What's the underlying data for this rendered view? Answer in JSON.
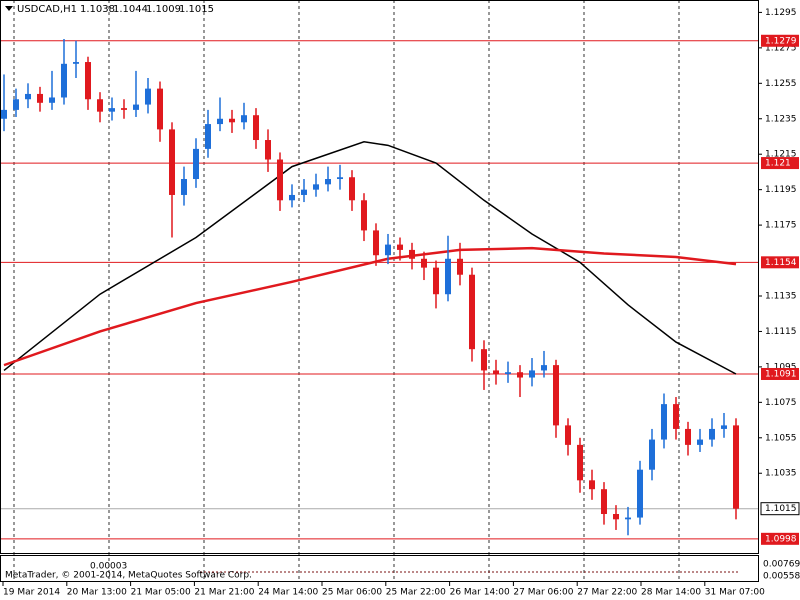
{
  "chart_data": {
    "type": "candlestick",
    "symbol": "USDCAD,H1",
    "quotes": [
      1.1038,
      1.1044,
      1.1009,
      1.1015
    ],
    "footer": "MetaTrader, © 2001-2014, MetaQuotes Software Corp.",
    "indicator_ticks": [
      0.00769,
      0.00558
    ],
    "indicator_label": "0.00003",
    "ylim": [
      1.099,
      1.1302
    ],
    "yticks": [
      1.1295,
      1.1275,
      1.1255,
      1.1235,
      1.1215,
      1.1195,
      1.1175,
      1.1135,
      1.1115,
      1.1095,
      1.1075,
      1.1055,
      1.1035
    ],
    "levels": [
      1.1279,
      1.121,
      1.1154,
      1.1091,
      1.0998
    ],
    "level_color": "#e0191e",
    "bid": 1.1015,
    "categories": [
      "19 Mar 2014",
      "20 Mar 13:00",
      "21 Mar 05:00",
      "21 Mar 21:00",
      "24 Mar 14:00",
      "25 Mar 06:00",
      "25 Mar 22:00",
      "26 Mar 14:00",
      "27 Mar 06:00",
      "27 Mar 22:00",
      "28 Mar 14:00",
      "31 Mar 07:00"
    ],
    "up_color": "#1e6fd9",
    "down_color": "#e0191e",
    "candles": [
      [
        1.1235,
        1.126,
        1.1228,
        1.124
      ],
      [
        1.124,
        1.1252,
        1.1236,
        1.1246
      ],
      [
        1.1246,
        1.1255,
        1.1241,
        1.1249
      ],
      [
        1.1249,
        1.1253,
        1.1239,
        1.1244
      ],
      [
        1.1244,
        1.1262,
        1.124,
        1.1247
      ],
      [
        1.1247,
        1.128,
        1.1243,
        1.1266
      ],
      [
        1.1266,
        1.1279,
        1.1258,
        1.1267
      ],
      [
        1.1267,
        1.127,
        1.124,
        1.1246
      ],
      [
        1.1246,
        1.125,
        1.1233,
        1.1239
      ],
      [
        1.1239,
        1.1247,
        1.1234,
        1.1241
      ],
      [
        1.1241,
        1.1246,
        1.1235,
        1.124
      ],
      [
        1.124,
        1.1262,
        1.1236,
        1.1243
      ],
      [
        1.1243,
        1.1258,
        1.1238,
        1.1252
      ],
      [
        1.1252,
        1.1256,
        1.1222,
        1.1229
      ],
      [
        1.1229,
        1.1233,
        1.1168,
        1.1192
      ],
      [
        1.1192,
        1.1208,
        1.1186,
        1.1201
      ],
      [
        1.1201,
        1.1224,
        1.1196,
        1.1218
      ],
      [
        1.1218,
        1.124,
        1.1213,
        1.1232
      ],
      [
        1.1232,
        1.1247,
        1.1228,
        1.1235
      ],
      [
        1.1235,
        1.124,
        1.1227,
        1.1233
      ],
      [
        1.1233,
        1.1244,
        1.1229,
        1.1237
      ],
      [
        1.1237,
        1.1241,
        1.1218,
        1.1223
      ],
      [
        1.1223,
        1.1229,
        1.1205,
        1.1212
      ],
      [
        1.1212,
        1.1216,
        1.1183,
        1.1189
      ],
      [
        1.1189,
        1.1198,
        1.1185,
        1.1192
      ],
      [
        1.1192,
        1.1201,
        1.1188,
        1.1195
      ],
      [
        1.1195,
        1.1204,
        1.1191,
        1.1198
      ],
      [
        1.1198,
        1.1208,
        1.1194,
        1.1201
      ],
      [
        1.1201,
        1.1209,
        1.1195,
        1.1202
      ],
      [
        1.1202,
        1.1206,
        1.1183,
        1.1189
      ],
      [
        1.1189,
        1.1193,
        1.1166,
        1.1172
      ],
      [
        1.1172,
        1.1176,
        1.1152,
        1.1158
      ],
      [
        1.1158,
        1.117,
        1.1153,
        1.1164
      ],
      [
        1.1164,
        1.1168,
        1.1155,
        1.1161
      ],
      [
        1.1161,
        1.1165,
        1.115,
        1.1156
      ],
      [
        1.1156,
        1.116,
        1.1144,
        1.1151
      ],
      [
        1.1151,
        1.1155,
        1.1128,
        1.1136
      ],
      [
        1.1136,
        1.1169,
        1.1132,
        1.1156
      ],
      [
        1.1156,
        1.1165,
        1.1141,
        1.1147
      ],
      [
        1.1147,
        1.1151,
        1.1098,
        1.1105
      ],
      [
        1.1105,
        1.111,
        1.1082,
        1.1093
      ],
      [
        1.1093,
        1.1099,
        1.1085,
        1.1091
      ],
      [
        1.1091,
        1.1098,
        1.1086,
        1.1092
      ],
      [
        1.1092,
        1.1096,
        1.1078,
        1.1089
      ],
      [
        1.1089,
        1.11,
        1.1084,
        1.1093
      ],
      [
        1.1093,
        1.1104,
        1.1089,
        1.1096
      ],
      [
        1.1096,
        1.1099,
        1.1055,
        1.1062
      ],
      [
        1.1062,
        1.1066,
        1.1045,
        1.1051
      ],
      [
        1.1051,
        1.1055,
        1.1024,
        1.1031
      ],
      [
        1.1031,
        1.1037,
        1.102,
        1.1026
      ],
      [
        1.1026,
        1.103,
        1.1006,
        1.1012
      ],
      [
        1.1012,
        1.1017,
        1.1003,
        1.1009
      ],
      [
        1.1009,
        1.1016,
        1.1,
        1.101
      ],
      [
        1.101,
        1.1042,
        1.1006,
        1.1037
      ],
      [
        1.1037,
        1.106,
        1.1031,
        1.1054
      ],
      [
        1.1054,
        1.108,
        1.1049,
        1.1074
      ],
      [
        1.1074,
        1.1078,
        1.1054,
        1.106
      ],
      [
        1.106,
        1.1064,
        1.1045,
        1.1051
      ],
      [
        1.1051,
        1.106,
        1.1047,
        1.1054
      ],
      [
        1.1054,
        1.1066,
        1.105,
        1.106
      ],
      [
        1.106,
        1.1069,
        1.1055,
        1.1062
      ],
      [
        1.1062,
        1.1066,
        1.1009,
        1.1015
      ]
    ],
    "overlays": [
      {
        "color": "#000000",
        "index": [
          0,
          8,
          16,
          24,
          30,
          32,
          36,
          40,
          44,
          48,
          52,
          56,
          61
        ],
        "values": [
          1.1093,
          1.1136,
          1.1168,
          1.1208,
          1.1222,
          1.122,
          1.121,
          1.1189,
          1.117,
          1.1154,
          1.113,
          1.1109,
          1.1091
        ]
      },
      {
        "color": "#e0191e",
        "index": [
          0,
          8,
          16,
          24,
          32,
          38,
          44,
          50,
          56,
          61
        ],
        "values": [
          1.1096,
          1.1115,
          1.1131,
          1.1143,
          1.1156,
          1.1161,
          1.1162,
          1.1159,
          1.1157,
          1.1153
        ]
      }
    ]
  }
}
